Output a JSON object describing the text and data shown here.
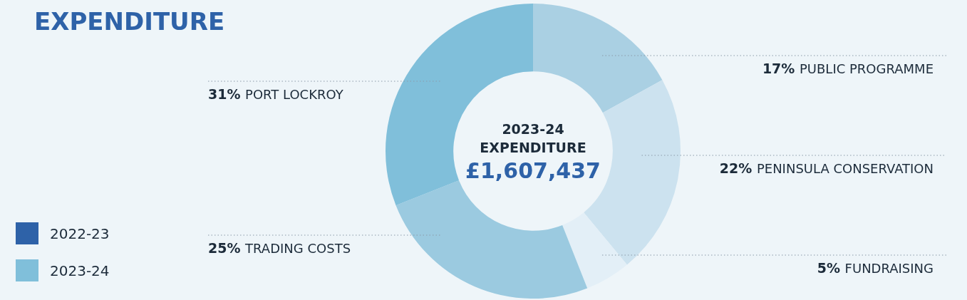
{
  "chart_data": {
    "type": "donut",
    "title": "EXPENDITURE",
    "categories": [
      "PUBLIC PROGRAMME",
      "PENINSULA CONSERVATION",
      "FUNDRAISING",
      "TRADING COSTS",
      "PORT LOCKROY"
    ],
    "values": [
      17,
      22,
      5,
      25,
      31
    ],
    "colors": [
      "#aad0e3",
      "#cce2ef",
      "#e3eff7",
      "#9bcae0",
      "#80bfda"
    ],
    "value_labels": [
      "17%",
      "22%",
      "5%",
      "25%",
      "31%"
    ],
    "annotations": [
      "2023-24",
      "EXPENDITURE",
      "£1,607,437",
      "2022-23",
      "2023-24"
    ]
  }
}
